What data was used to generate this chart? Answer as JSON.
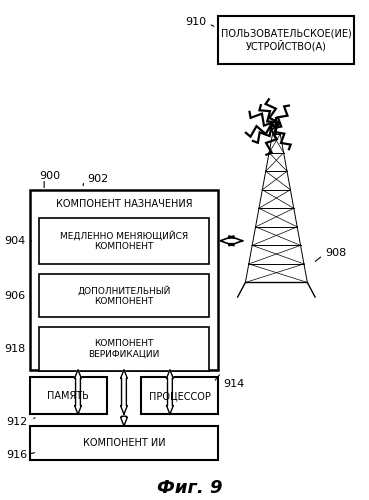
{
  "title": "Фиг. 9",
  "bg_color": "#ffffff",
  "box_texts": {
    "user_device": "ПОЛЬЗОВАТЕЛЬСКОЕ(ИЕ)\nУСТРОЙСТВО(А)",
    "assignment": "КОМПОНЕНТ НАЗНАЧЕНИЯ",
    "slow": "МЕДЛЕННО МЕНЯЮЩИЙСЯ\nКОМПОНЕНТ",
    "additional": "ДОПОЛНИТЕЛЬНЫЙ\nКОМПОНЕНТ",
    "verification": "КОМПОНЕНТ\nВЕРИФИКАЦИИ",
    "memory": "ПАМЯТЬ",
    "processor": "ПРОЦЕССОР",
    "ai": "КОМПОНЕНТ ИИ"
  }
}
